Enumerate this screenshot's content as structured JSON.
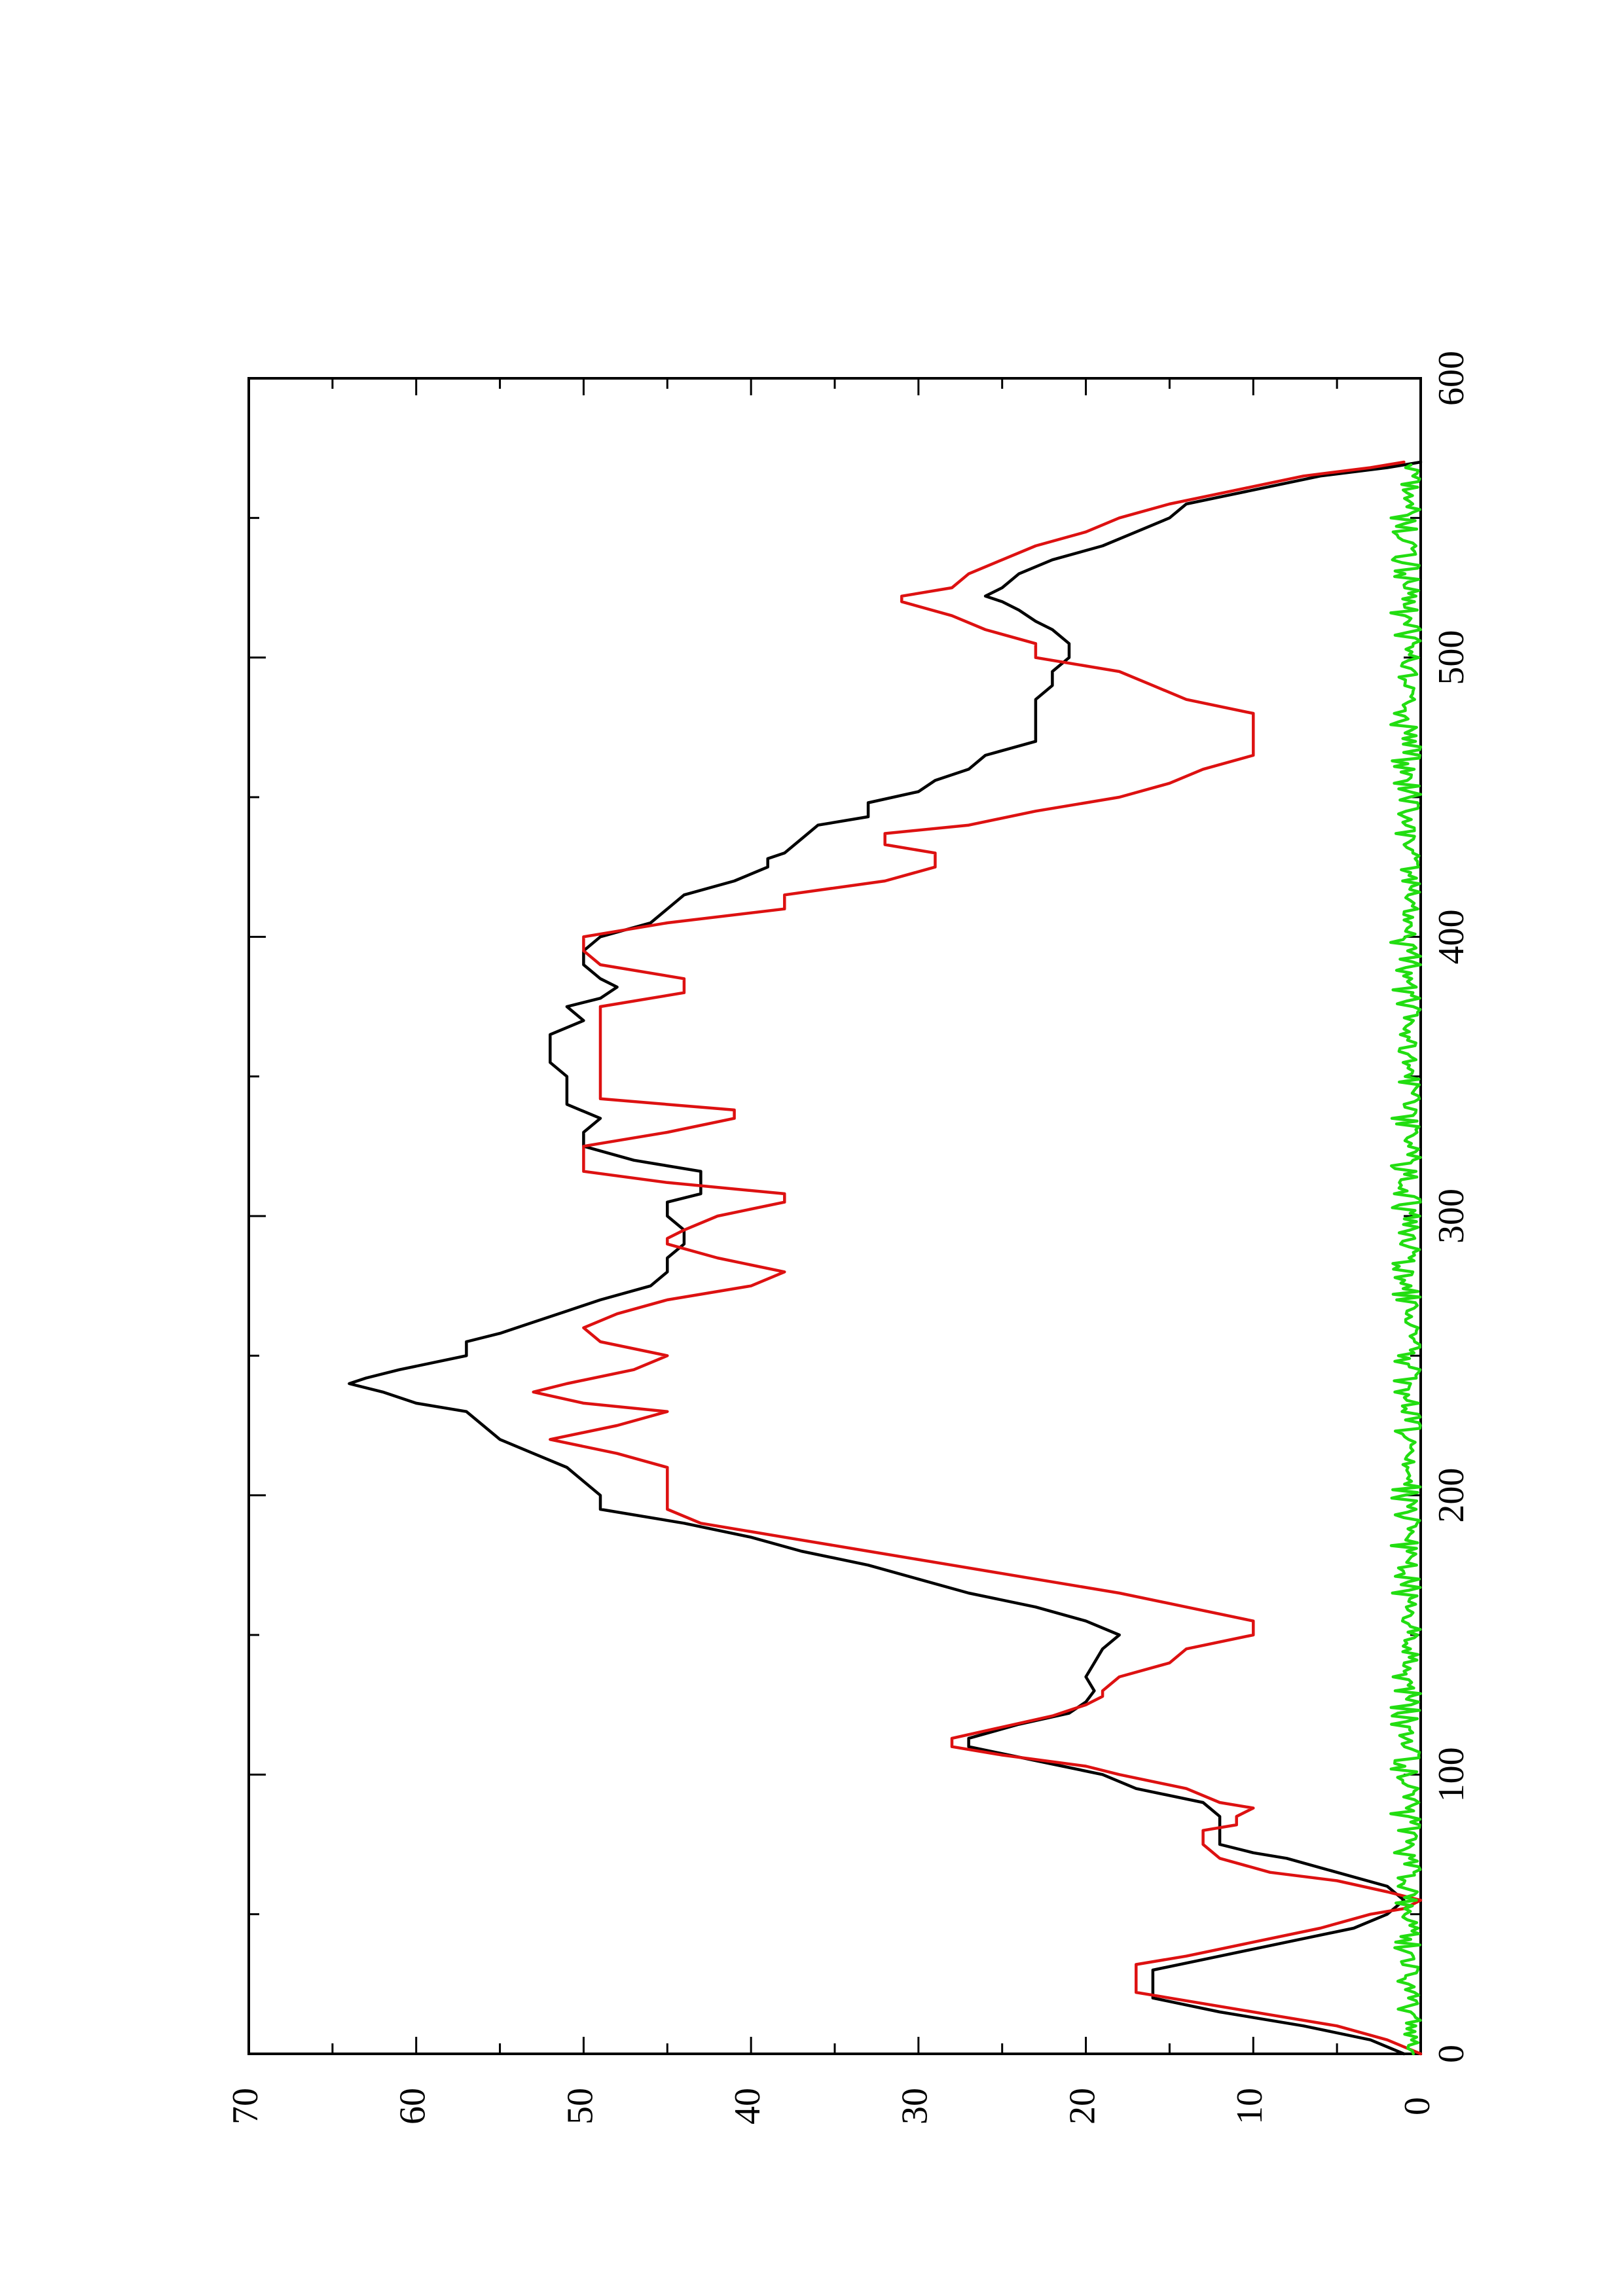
{
  "chart_data": {
    "type": "line",
    "title": "",
    "xlabel": "",
    "ylabel": "",
    "orientation": "rotated-90-ccw",
    "xlim": [
      0,
      600
    ],
    "ylim": [
      0,
      70
    ],
    "x_ticks": [
      0,
      100,
      200,
      300,
      400,
      500,
      600
    ],
    "y_ticks": [
      0,
      10,
      20,
      30,
      40,
      50,
      60,
      70
    ],
    "x_tick_labels": [
      "0",
      "100",
      "200",
      "300",
      "400",
      "500",
      "600"
    ],
    "y_tick_labels": [
      "0",
      "10",
      "20",
      "30",
      "40",
      "50",
      "60",
      "70"
    ],
    "grid": false,
    "series": [
      {
        "color": "#000000",
        "points": [
          [
            0,
            1
          ],
          [
            5,
            3
          ],
          [
            10,
            7
          ],
          [
            15,
            12
          ],
          [
            20,
            16
          ],
          [
            25,
            16
          ],
          [
            30,
            16
          ],
          [
            35,
            12
          ],
          [
            40,
            8
          ],
          [
            45,
            4
          ],
          [
            50,
            2
          ],
          [
            55,
            1
          ],
          [
            60,
            2
          ],
          [
            65,
            5
          ],
          [
            70,
            8
          ],
          [
            72,
            10
          ],
          [
            75,
            12
          ],
          [
            80,
            12
          ],
          [
            85,
            12
          ],
          [
            90,
            13
          ],
          [
            95,
            17
          ],
          [
            100,
            19
          ],
          [
            105,
            23
          ],
          [
            110,
            27
          ],
          [
            113,
            27
          ],
          [
            118,
            24
          ],
          [
            122,
            21
          ],
          [
            126,
            20
          ],
          [
            130,
            19.5
          ],
          [
            135,
            20
          ],
          [
            140,
            19.5
          ],
          [
            145,
            19
          ],
          [
            150,
            18
          ],
          [
            155,
            20
          ],
          [
            160,
            23
          ],
          [
            165,
            27
          ],
          [
            170,
            30
          ],
          [
            175,
            33
          ],
          [
            180,
            37
          ],
          [
            185,
            40
          ],
          [
            190,
            44
          ],
          [
            195,
            49
          ],
          [
            200,
            49
          ],
          [
            205,
            50
          ],
          [
            210,
            51
          ],
          [
            215,
            53
          ],
          [
            220,
            55
          ],
          [
            225,
            56
          ],
          [
            230,
            57
          ],
          [
            233,
            60
          ],
          [
            237,
            62
          ],
          [
            240,
            64
          ],
          [
            242,
            63
          ],
          [
            245,
            61
          ],
          [
            250,
            57
          ],
          [
            255,
            57
          ],
          [
            258,
            55
          ],
          [
            262,
            53
          ],
          [
            266,
            51
          ],
          [
            270,
            49
          ],
          [
            275,
            46
          ],
          [
            280,
            45
          ],
          [
            285,
            45
          ],
          [
            290,
            44
          ],
          [
            295,
            44
          ],
          [
            300,
            45
          ],
          [
            305,
            45
          ],
          [
            308,
            43
          ],
          [
            312,
            43
          ],
          [
            316,
            43
          ],
          [
            320,
            47
          ],
          [
            325,
            50
          ],
          [
            330,
            50
          ],
          [
            335,
            49
          ],
          [
            340,
            51
          ],
          [
            345,
            51
          ],
          [
            350,
            51
          ],
          [
            355,
            52
          ],
          [
            360,
            52
          ],
          [
            365,
            52
          ],
          [
            370,
            50
          ],
          [
            375,
            51
          ],
          [
            378,
            49
          ],
          [
            382,
            48
          ],
          [
            385,
            49
          ],
          [
            390,
            50
          ],
          [
            395,
            50
          ],
          [
            400,
            49
          ],
          [
            405,
            46
          ],
          [
            410,
            45
          ],
          [
            415,
            44
          ],
          [
            420,
            41
          ],
          [
            425,
            39
          ],
          [
            428,
            39
          ],
          [
            430,
            38
          ],
          [
            435,
            37
          ],
          [
            440,
            36
          ],
          [
            443,
            33
          ],
          [
            448,
            33
          ],
          [
            452,
            30
          ],
          [
            456,
            29
          ],
          [
            460,
            27
          ],
          [
            465,
            26
          ],
          [
            470,
            23
          ],
          [
            475,
            23
          ],
          [
            480,
            23
          ],
          [
            485,
            23
          ],
          [
            490,
            22
          ],
          [
            495,
            22
          ],
          [
            500,
            21
          ],
          [
            505,
            21
          ],
          [
            510,
            22
          ],
          [
            513,
            23
          ],
          [
            517,
            24
          ],
          [
            520,
            25
          ],
          [
            522,
            26
          ],
          [
            525,
            25
          ],
          [
            530,
            24
          ],
          [
            535,
            22
          ],
          [
            540,
            19
          ],
          [
            545,
            17
          ],
          [
            550,
            15
          ],
          [
            555,
            14
          ],
          [
            560,
            10
          ],
          [
            565,
            6
          ],
          [
            568,
            2
          ],
          [
            570,
            0
          ]
        ]
      },
      {
        "color": "#dd1111",
        "points": [
          [
            0,
            0
          ],
          [
            5,
            2
          ],
          [
            10,
            5
          ],
          [
            14,
            9
          ],
          [
            18,
            13
          ],
          [
            22,
            17
          ],
          [
            25,
            17
          ],
          [
            30,
            17
          ],
          [
            32,
            17
          ],
          [
            35,
            14
          ],
          [
            40,
            10
          ],
          [
            45,
            6
          ],
          [
            50,
            3
          ],
          [
            52,
            1
          ],
          [
            55,
            0
          ],
          [
            58,
            2
          ],
          [
            62,
            5
          ],
          [
            65,
            9
          ],
          [
            70,
            12
          ],
          [
            75,
            13
          ],
          [
            80,
            13
          ],
          [
            82,
            11
          ],
          [
            85,
            11
          ],
          [
            88,
            10
          ],
          [
            90,
            12
          ],
          [
            95,
            14
          ],
          [
            100,
            18
          ],
          [
            103,
            20
          ],
          [
            107,
            25
          ],
          [
            110,
            28
          ],
          [
            113,
            28
          ],
          [
            117,
            25
          ],
          [
            121,
            22
          ],
          [
            125,
            20
          ],
          [
            128,
            19
          ],
          [
            130,
            19
          ],
          [
            135,
            18
          ],
          [
            140,
            15
          ],
          [
            145,
            14
          ],
          [
            150,
            10
          ],
          [
            155,
            10
          ],
          [
            160,
            14
          ],
          [
            165,
            18
          ],
          [
            170,
            23
          ],
          [
            175,
            28
          ],
          [
            180,
            33
          ],
          [
            185,
            38
          ],
          [
            190,
            43
          ],
          [
            195,
            45
          ],
          [
            200,
            45
          ],
          [
            205,
            45
          ],
          [
            210,
            45
          ],
          [
            215,
            48
          ],
          [
            220,
            52
          ],
          [
            225,
            48
          ],
          [
            230,
            45
          ],
          [
            233,
            50
          ],
          [
            237,
            53
          ],
          [
            240,
            51
          ],
          [
            245,
            47
          ],
          [
            250,
            45
          ],
          [
            255,
            49
          ],
          [
            260,
            50
          ],
          [
            265,
            48
          ],
          [
            270,
            45
          ],
          [
            275,
            40
          ],
          [
            280,
            38
          ],
          [
            285,
            42
          ],
          [
            290,
            45
          ],
          [
            292,
            45
          ],
          [
            295,
            44
          ],
          [
            300,
            42
          ],
          [
            305,
            38
          ],
          [
            308,
            38
          ],
          [
            312,
            45
          ],
          [
            316,
            50
          ],
          [
            320,
            50
          ],
          [
            325,
            50
          ],
          [
            330,
            45
          ],
          [
            335,
            41
          ],
          [
            338,
            41
          ],
          [
            342,
            49
          ],
          [
            346,
            49
          ],
          [
            350,
            49
          ],
          [
            355,
            49
          ],
          [
            360,
            49
          ],
          [
            370,
            49
          ],
          [
            375,
            49
          ],
          [
            380,
            44
          ],
          [
            385,
            44
          ],
          [
            390,
            49
          ],
          [
            395,
            50
          ],
          [
            400,
            50
          ],
          [
            405,
            45
          ],
          [
            410,
            38
          ],
          [
            415,
            38
          ],
          [
            420,
            32
          ],
          [
            425,
            29
          ],
          [
            430,
            29
          ],
          [
            433,
            32
          ],
          [
            437,
            32
          ],
          [
            440,
            27
          ],
          [
            445,
            23
          ],
          [
            450,
            18
          ],
          [
            455,
            15
          ],
          [
            460,
            13
          ],
          [
            465,
            10
          ],
          [
            470,
            10
          ],
          [
            475,
            10
          ],
          [
            480,
            10
          ],
          [
            485,
            14
          ],
          [
            490,
            16
          ],
          [
            495,
            18
          ],
          [
            500,
            23
          ],
          [
            505,
            23
          ],
          [
            510,
            26
          ],
          [
            515,
            28
          ],
          [
            520,
            31
          ],
          [
            522,
            31
          ],
          [
            525,
            28
          ],
          [
            530,
            27
          ],
          [
            535,
            25
          ],
          [
            540,
            23
          ],
          [
            545,
            20
          ],
          [
            550,
            18
          ],
          [
            555,
            15
          ],
          [
            560,
            11
          ],
          [
            565,
            7
          ],
          [
            568,
            3
          ],
          [
            570,
            1
          ]
        ]
      },
      {
        "color": "#22dd11",
        "noise": true,
        "n_points": 570,
        "baseline": 0,
        "amplitude_range": [
          0,
          1.8
        ],
        "seed": 17
      }
    ]
  }
}
